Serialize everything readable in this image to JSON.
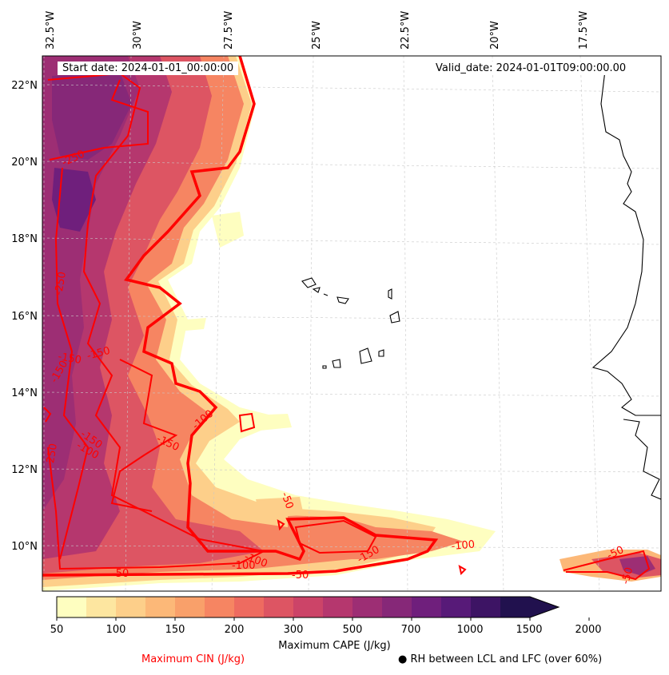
{
  "map": {
    "start_date": "Start date: 2024-01-01_00:00:00",
    "valid_date": "Valid_date: 2024-01-01T09:00:00.00",
    "lon_labels": [
      "32.5°W",
      "30°W",
      "27.5°W",
      "25°W",
      "22.5°W",
      "20°W",
      "17.5°W"
    ],
    "lat_labels": [
      "22°N",
      "20°N",
      "18°N",
      "16°N",
      "14°N",
      "12°N",
      "10°N"
    ],
    "cin_contour_labels": [
      "-250",
      "-250",
      "-250",
      "-150",
      "-150",
      "-150",
      "-150",
      "-150",
      "-150",
      "-100",
      "-100",
      "-100",
      "-100",
      "-50",
      "-50",
      "-50",
      "-50",
      "-50",
      "-100"
    ]
  },
  "colorbar": {
    "ticks": [
      "50",
      "100",
      "150",
      "200",
      "300",
      "500",
      "700",
      "1000",
      "1500",
      "2000"
    ],
    "colors": [
      "#fefec0",
      "#fde6a0",
      "#fdcf8a",
      "#fcb878",
      "#f9a06a",
      "#f68562",
      "#ee6b60",
      "#dd5563",
      "#cc4468",
      "#b5376e",
      "#9d2e74",
      "#862878",
      "#6f1f7c",
      "#571a78",
      "#3d1464",
      "#21114e"
    ],
    "title": "Maximum CAPE (J/kg)"
  },
  "legend": {
    "cin_label": "Maximum CIN (J/kg)",
    "rh_marker": "●",
    "rh_label": "RH between LCL and LFC (over 60%)",
    "cin_color": "#ff0000"
  }
}
